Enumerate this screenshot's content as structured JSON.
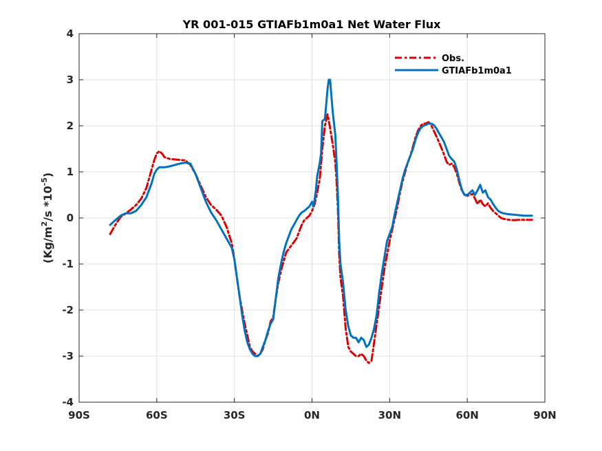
{
  "chart_data": {
    "type": "line",
    "title": "YR 001-015 GTIAFb1m0a1  Net Water Flux",
    "xlabel": "",
    "ylabel": "(Kg/m²/s *10⁻⁵)",
    "ylabel_parts": {
      "base": "(Kg/m",
      "sup1": "2",
      "mid": "/s *10",
      "sup2": "-5",
      "end": ")"
    },
    "xlim": [
      -90,
      90
    ],
    "ylim": [
      -4,
      4
    ],
    "x_ticks": [
      -90,
      -60,
      -30,
      0,
      30,
      60,
      90
    ],
    "x_tick_labels": [
      "90S",
      "60S",
      "30S",
      "0N",
      "30N",
      "60N",
      "90N"
    ],
    "y_ticks": [
      -4,
      -3,
      -2,
      -1,
      0,
      1,
      2,
      3,
      4
    ],
    "y_tick_labels": [
      "-4",
      "-3",
      "-2",
      "-1",
      "0",
      "1",
      "2",
      "3",
      "4"
    ],
    "grid": true,
    "legend_position": "top-right",
    "series": [
      {
        "name": "Obs.",
        "color": "#dd0000",
        "style": "dash-dot",
        "points": [
          [
            -78,
            -0.35
          ],
          [
            -76,
            -0.15
          ],
          [
            -74,
            0.02
          ],
          [
            -72,
            0.1
          ],
          [
            -70,
            0.18
          ],
          [
            -68,
            0.28
          ],
          [
            -66,
            0.42
          ],
          [
            -64,
            0.65
          ],
          [
            -62,
            1.05
          ],
          [
            -61,
            1.25
          ],
          [
            -60,
            1.4
          ],
          [
            -59,
            1.45
          ],
          [
            -58,
            1.4
          ],
          [
            -57,
            1.32
          ],
          [
            -55,
            1.28
          ],
          [
            -53,
            1.27
          ],
          [
            -51,
            1.26
          ],
          [
            -49,
            1.25
          ],
          [
            -47,
            1.15
          ],
          [
            -45,
            0.95
          ],
          [
            -43,
            0.7
          ],
          [
            -41,
            0.45
          ],
          [
            -39,
            0.28
          ],
          [
            -37,
            0.18
          ],
          [
            -35,
            0.05
          ],
          [
            -33,
            -0.2
          ],
          [
            -31,
            -0.55
          ],
          [
            -30,
            -0.9
          ],
          [
            -29,
            -1.3
          ],
          [
            -28,
            -1.7
          ],
          [
            -27,
            -2.0
          ],
          [
            -26,
            -2.3
          ],
          [
            -25,
            -2.55
          ],
          [
            -24,
            -2.8
          ],
          [
            -23,
            -2.9
          ],
          [
            -22,
            -2.95
          ],
          [
            -21,
            -3.0
          ],
          [
            -20,
            -2.95
          ],
          [
            -19,
            -2.85
          ],
          [
            -18,
            -2.65
          ],
          [
            -17,
            -2.5
          ],
          [
            -16,
            -2.25
          ],
          [
            -15,
            -2.15
          ],
          [
            -14,
            -1.75
          ],
          [
            -13,
            -1.4
          ],
          [
            -12,
            -1.15
          ],
          [
            -11,
            -0.95
          ],
          [
            -10,
            -0.75
          ],
          [
            -8,
            -0.6
          ],
          [
            -6,
            -0.45
          ],
          [
            -5,
            -0.3
          ],
          [
            -4,
            -0.15
          ],
          [
            -3,
            -0.05
          ],
          [
            -2,
            0.0
          ],
          [
            -1,
            0.05
          ],
          [
            0,
            0.15
          ],
          [
            1,
            0.3
          ],
          [
            2,
            0.55
          ],
          [
            3,
            0.85
          ],
          [
            4,
            1.5
          ],
          [
            5,
            2.0
          ],
          [
            6,
            2.25
          ],
          [
            7,
            1.95
          ],
          [
            8,
            1.6
          ],
          [
            9,
            1.2
          ],
          [
            9.5,
            0.8
          ],
          [
            10,
            0.2
          ],
          [
            10.5,
            -0.8
          ],
          [
            11,
            -1.3
          ],
          [
            12,
            -1.7
          ],
          [
            13,
            -2.4
          ],
          [
            14,
            -2.8
          ],
          [
            15,
            -2.9
          ],
          [
            16,
            -2.95
          ],
          [
            17,
            -3.0
          ],
          [
            18,
            -3.0
          ],
          [
            19,
            -2.95
          ],
          [
            20,
            -3.0
          ],
          [
            21,
            -3.1
          ],
          [
            22,
            -3.15
          ],
          [
            23,
            -3.1
          ],
          [
            24,
            -2.7
          ],
          [
            25,
            -2.3
          ],
          [
            26,
            -1.9
          ],
          [
            27,
            -1.5
          ],
          [
            28,
            -1.1
          ],
          [
            29,
            -0.8
          ],
          [
            30,
            -0.5
          ],
          [
            31,
            -0.25
          ],
          [
            32,
            0.0
          ],
          [
            33,
            0.25
          ],
          [
            34,
            0.55
          ],
          [
            35,
            0.8
          ],
          [
            36,
            1.0
          ],
          [
            37,
            1.2
          ],
          [
            38,
            1.35
          ],
          [
            39,
            1.55
          ],
          [
            40,
            1.75
          ],
          [
            41,
            1.9
          ],
          [
            42,
            2.0
          ],
          [
            43,
            2.05
          ],
          [
            44,
            2.05
          ],
          [
            45,
            2.08
          ],
          [
            46,
            2.02
          ],
          [
            47,
            1.9
          ],
          [
            48,
            1.78
          ],
          [
            49,
            1.65
          ],
          [
            50,
            1.52
          ],
          [
            51,
            1.38
          ],
          [
            52,
            1.22
          ],
          [
            53,
            1.15
          ],
          [
            54,
            1.18
          ],
          [
            55,
            1.1
          ],
          [
            56,
            0.95
          ],
          [
            57,
            0.75
          ],
          [
            58,
            0.58
          ],
          [
            59,
            0.5
          ],
          [
            60,
            0.48
          ],
          [
            61,
            0.5
          ],
          [
            62,
            0.52
          ],
          [
            63,
            0.42
          ],
          [
            64,
            0.3
          ],
          [
            65,
            0.4
          ],
          [
            66,
            0.3
          ],
          [
            67,
            0.25
          ],
          [
            68,
            0.32
          ],
          [
            69,
            0.22
          ],
          [
            70,
            0.15
          ],
          [
            71,
            0.1
          ],
          [
            72,
            0.05
          ],
          [
            73,
            0.0
          ],
          [
            74,
            -0.02
          ],
          [
            76,
            -0.04
          ],
          [
            78,
            -0.05
          ],
          [
            80,
            -0.04
          ],
          [
            82,
            -0.04
          ],
          [
            85,
            -0.04
          ]
        ]
      },
      {
        "name": "GTIAFb1m0a1",
        "color": "#0072bd",
        "style": "solid",
        "points": [
          [
            -78,
            -0.15
          ],
          [
            -76,
            -0.05
          ],
          [
            -74,
            0.05
          ],
          [
            -72,
            0.1
          ],
          [
            -70,
            0.1
          ],
          [
            -68,
            0.15
          ],
          [
            -66,
            0.28
          ],
          [
            -64,
            0.45
          ],
          [
            -62,
            0.75
          ],
          [
            -61,
            0.95
          ],
          [
            -60,
            1.05
          ],
          [
            -59,
            1.1
          ],
          [
            -58,
            1.1
          ],
          [
            -57,
            1.1
          ],
          [
            -55,
            1.12
          ],
          [
            -53,
            1.15
          ],
          [
            -51,
            1.18
          ],
          [
            -49,
            1.2
          ],
          [
            -47,
            1.18
          ],
          [
            -45,
            0.95
          ],
          [
            -43,
            0.65
          ],
          [
            -41,
            0.35
          ],
          [
            -39,
            0.12
          ],
          [
            -37,
            -0.05
          ],
          [
            -35,
            -0.25
          ],
          [
            -33,
            -0.45
          ],
          [
            -31,
            -0.65
          ],
          [
            -30,
            -0.9
          ],
          [
            -29,
            -1.3
          ],
          [
            -28,
            -1.7
          ],
          [
            -27,
            -2.1
          ],
          [
            -26,
            -2.45
          ],
          [
            -25,
            -2.7
          ],
          [
            -24,
            -2.85
          ],
          [
            -23,
            -2.95
          ],
          [
            -22,
            -3.0
          ],
          [
            -21,
            -3.0
          ],
          [
            -20,
            -2.95
          ],
          [
            -19,
            -2.8
          ],
          [
            -18,
            -2.65
          ],
          [
            -17,
            -2.45
          ],
          [
            -16,
            -2.3
          ],
          [
            -15,
            -2.2
          ],
          [
            -14,
            -1.75
          ],
          [
            -13,
            -1.3
          ],
          [
            -12,
            -1.0
          ],
          [
            -11,
            -0.75
          ],
          [
            -10,
            -0.55
          ],
          [
            -9,
            -0.4
          ],
          [
            -8,
            -0.25
          ],
          [
            -7,
            -0.15
          ],
          [
            -6,
            -0.05
          ],
          [
            -5,
            0.05
          ],
          [
            -4,
            0.12
          ],
          [
            -3,
            0.15
          ],
          [
            -2,
            0.2
          ],
          [
            -1,
            0.25
          ],
          [
            0,
            0.35
          ],
          [
            0.5,
            0.25
          ],
          [
            1,
            0.4
          ],
          [
            1.5,
            0.6
          ],
          [
            2,
            0.9
          ],
          [
            3,
            1.2
          ],
          [
            3.5,
            1.4
          ],
          [
            4,
            2.1
          ],
          [
            5,
            2.15
          ],
          [
            6,
            2.8
          ],
          [
            6.5,
            3.0
          ],
          [
            7,
            3.0
          ],
          [
            8,
            2.3
          ],
          [
            9,
            1.8
          ],
          [
            9.5,
            1.2
          ],
          [
            10,
            0.5
          ],
          [
            10.5,
            -0.5
          ],
          [
            11,
            -1.0
          ],
          [
            12,
            -1.4
          ],
          [
            13,
            -2.0
          ],
          [
            14,
            -2.35
          ],
          [
            15,
            -2.55
          ],
          [
            16,
            -2.6
          ],
          [
            17,
            -2.6
          ],
          [
            18,
            -2.7
          ],
          [
            19,
            -2.6
          ],
          [
            20,
            -2.65
          ],
          [
            21,
            -2.8
          ],
          [
            22,
            -2.75
          ],
          [
            23,
            -2.6
          ],
          [
            24,
            -2.4
          ],
          [
            25,
            -2.1
          ],
          [
            26,
            -1.6
          ],
          [
            27,
            -1.2
          ],
          [
            28,
            -0.85
          ],
          [
            29,
            -0.5
          ],
          [
            30,
            -0.35
          ],
          [
            31,
            -0.2
          ],
          [
            32,
            0.1
          ],
          [
            33,
            0.35
          ],
          [
            34,
            0.6
          ],
          [
            35,
            0.85
          ],
          [
            36,
            1.05
          ],
          [
            37,
            1.2
          ],
          [
            38,
            1.35
          ],
          [
            39,
            1.5
          ],
          [
            40,
            1.7
          ],
          [
            41,
            1.85
          ],
          [
            42,
            1.95
          ],
          [
            43,
            2.0
          ],
          [
            44,
            2.02
          ],
          [
            45,
            2.05
          ],
          [
            46,
            2.05
          ],
          [
            47,
            2.02
          ],
          [
            48,
            1.95
          ],
          [
            49,
            1.85
          ],
          [
            50,
            1.75
          ],
          [
            51,
            1.65
          ],
          [
            52,
            1.5
          ],
          [
            53,
            1.35
          ],
          [
            54,
            1.28
          ],
          [
            55,
            1.22
          ],
          [
            56,
            1.05
          ],
          [
            57,
            0.8
          ],
          [
            58,
            0.6
          ],
          [
            59,
            0.5
          ],
          [
            60,
            0.5
          ],
          [
            61,
            0.55
          ],
          [
            62,
            0.6
          ],
          [
            63,
            0.5
          ],
          [
            64,
            0.6
          ],
          [
            65,
            0.72
          ],
          [
            66,
            0.55
          ],
          [
            67,
            0.6
          ],
          [
            68,
            0.45
          ],
          [
            69,
            0.4
          ],
          [
            70,
            0.3
          ],
          [
            71,
            0.22
          ],
          [
            72,
            0.15
          ],
          [
            73,
            0.12
          ],
          [
            74,
            0.1
          ],
          [
            76,
            0.08
          ],
          [
            78,
            0.07
          ],
          [
            80,
            0.06
          ],
          [
            82,
            0.05
          ],
          [
            85,
            0.05
          ]
        ]
      }
    ]
  }
}
